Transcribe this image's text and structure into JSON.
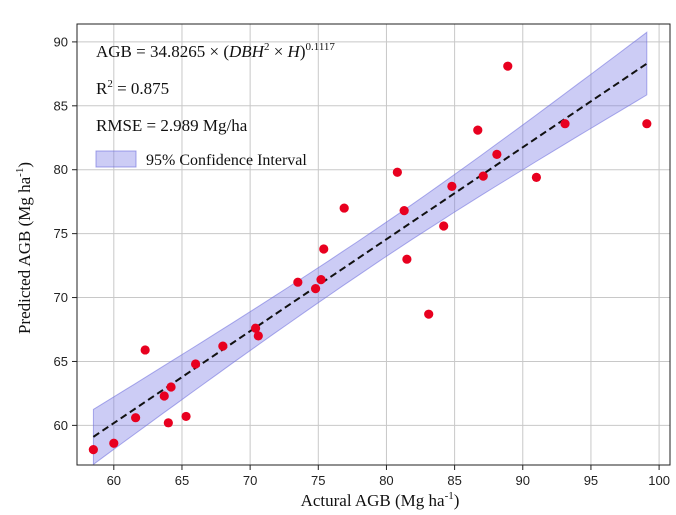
{
  "chart_data": {
    "type": "scatter",
    "xlabel": "Actural AGB  (Mg ha",
    "xlabel_sup": "-1",
    "xlabel_close": ")",
    "ylabel": "Predicted AGB  (Mg ha",
    "ylabel_sup": "-1",
    "ylabel_close": ")",
    "xlim": [
      57.3,
      100.8
    ],
    "ylim": [
      56.9,
      91.4
    ],
    "xticks": [
      60,
      65,
      70,
      75,
      80,
      85,
      90,
      95,
      100
    ],
    "yticks": [
      60,
      65,
      70,
      75,
      80,
      85,
      90
    ],
    "grid": true,
    "points": [
      {
        "x": 58.5,
        "y": 58.1
      },
      {
        "x": 60.0,
        "y": 58.6
      },
      {
        "x": 61.6,
        "y": 60.6
      },
      {
        "x": 62.3,
        "y": 65.9
      },
      {
        "x": 63.7,
        "y": 62.3
      },
      {
        "x": 64.0,
        "y": 60.2
      },
      {
        "x": 64.2,
        "y": 63.0
      },
      {
        "x": 65.3,
        "y": 60.7
      },
      {
        "x": 66.0,
        "y": 64.8
      },
      {
        "x": 68.0,
        "y": 66.2
      },
      {
        "x": 70.4,
        "y": 67.6
      },
      {
        "x": 70.6,
        "y": 67.0
      },
      {
        "x": 73.5,
        "y": 71.2
      },
      {
        "x": 74.8,
        "y": 70.7
      },
      {
        "x": 75.2,
        "y": 71.4
      },
      {
        "x": 75.4,
        "y": 73.8
      },
      {
        "x": 76.9,
        "y": 77.0
      },
      {
        "x": 80.8,
        "y": 79.8
      },
      {
        "x": 81.3,
        "y": 76.8
      },
      {
        "x": 81.5,
        "y": 73.0
      },
      {
        "x": 83.1,
        "y": 68.7
      },
      {
        "x": 84.2,
        "y": 75.6
      },
      {
        "x": 84.8,
        "y": 78.7
      },
      {
        "x": 86.7,
        "y": 83.1
      },
      {
        "x": 87.1,
        "y": 79.5
      },
      {
        "x": 88.1,
        "y": 81.2
      },
      {
        "x": 88.9,
        "y": 88.1
      },
      {
        "x": 91.0,
        "y": 79.4
      },
      {
        "x": 93.1,
        "y": 83.6
      },
      {
        "x": 99.1,
        "y": 83.6
      }
    ],
    "fit_line": {
      "x": [
        58.5,
        99.1
      ],
      "y": [
        59.1,
        88.3
      ]
    },
    "confidence_band": {
      "x": [
        58.5,
        99.1
      ],
      "lower": [
        57.0,
        85.9
      ],
      "upper": [
        61.3,
        90.8
      ]
    },
    "annotations": {
      "equation_prefix": "AGB = 34.8265 × (",
      "equation_dbh": "DBH",
      "equation_dbh_sup": "2",
      "equation_times": " × ",
      "equation_h": "H",
      "equation_close": ")",
      "equation_exp": "0.1117",
      "r2_label": "R",
      "r2_sup": "2",
      "r2_value": " = 0.875",
      "rmse": "RMSE = 2.989 Mg/ha"
    },
    "legend": {
      "label": "95% Confidence Interval",
      "placement": "top-left"
    },
    "colors": {
      "points": "#e8001f",
      "fit_line": "#111111",
      "band_fill": "#7878e6",
      "band_edge": "#6b6bdc",
      "grid": "#c8c8c8"
    }
  }
}
